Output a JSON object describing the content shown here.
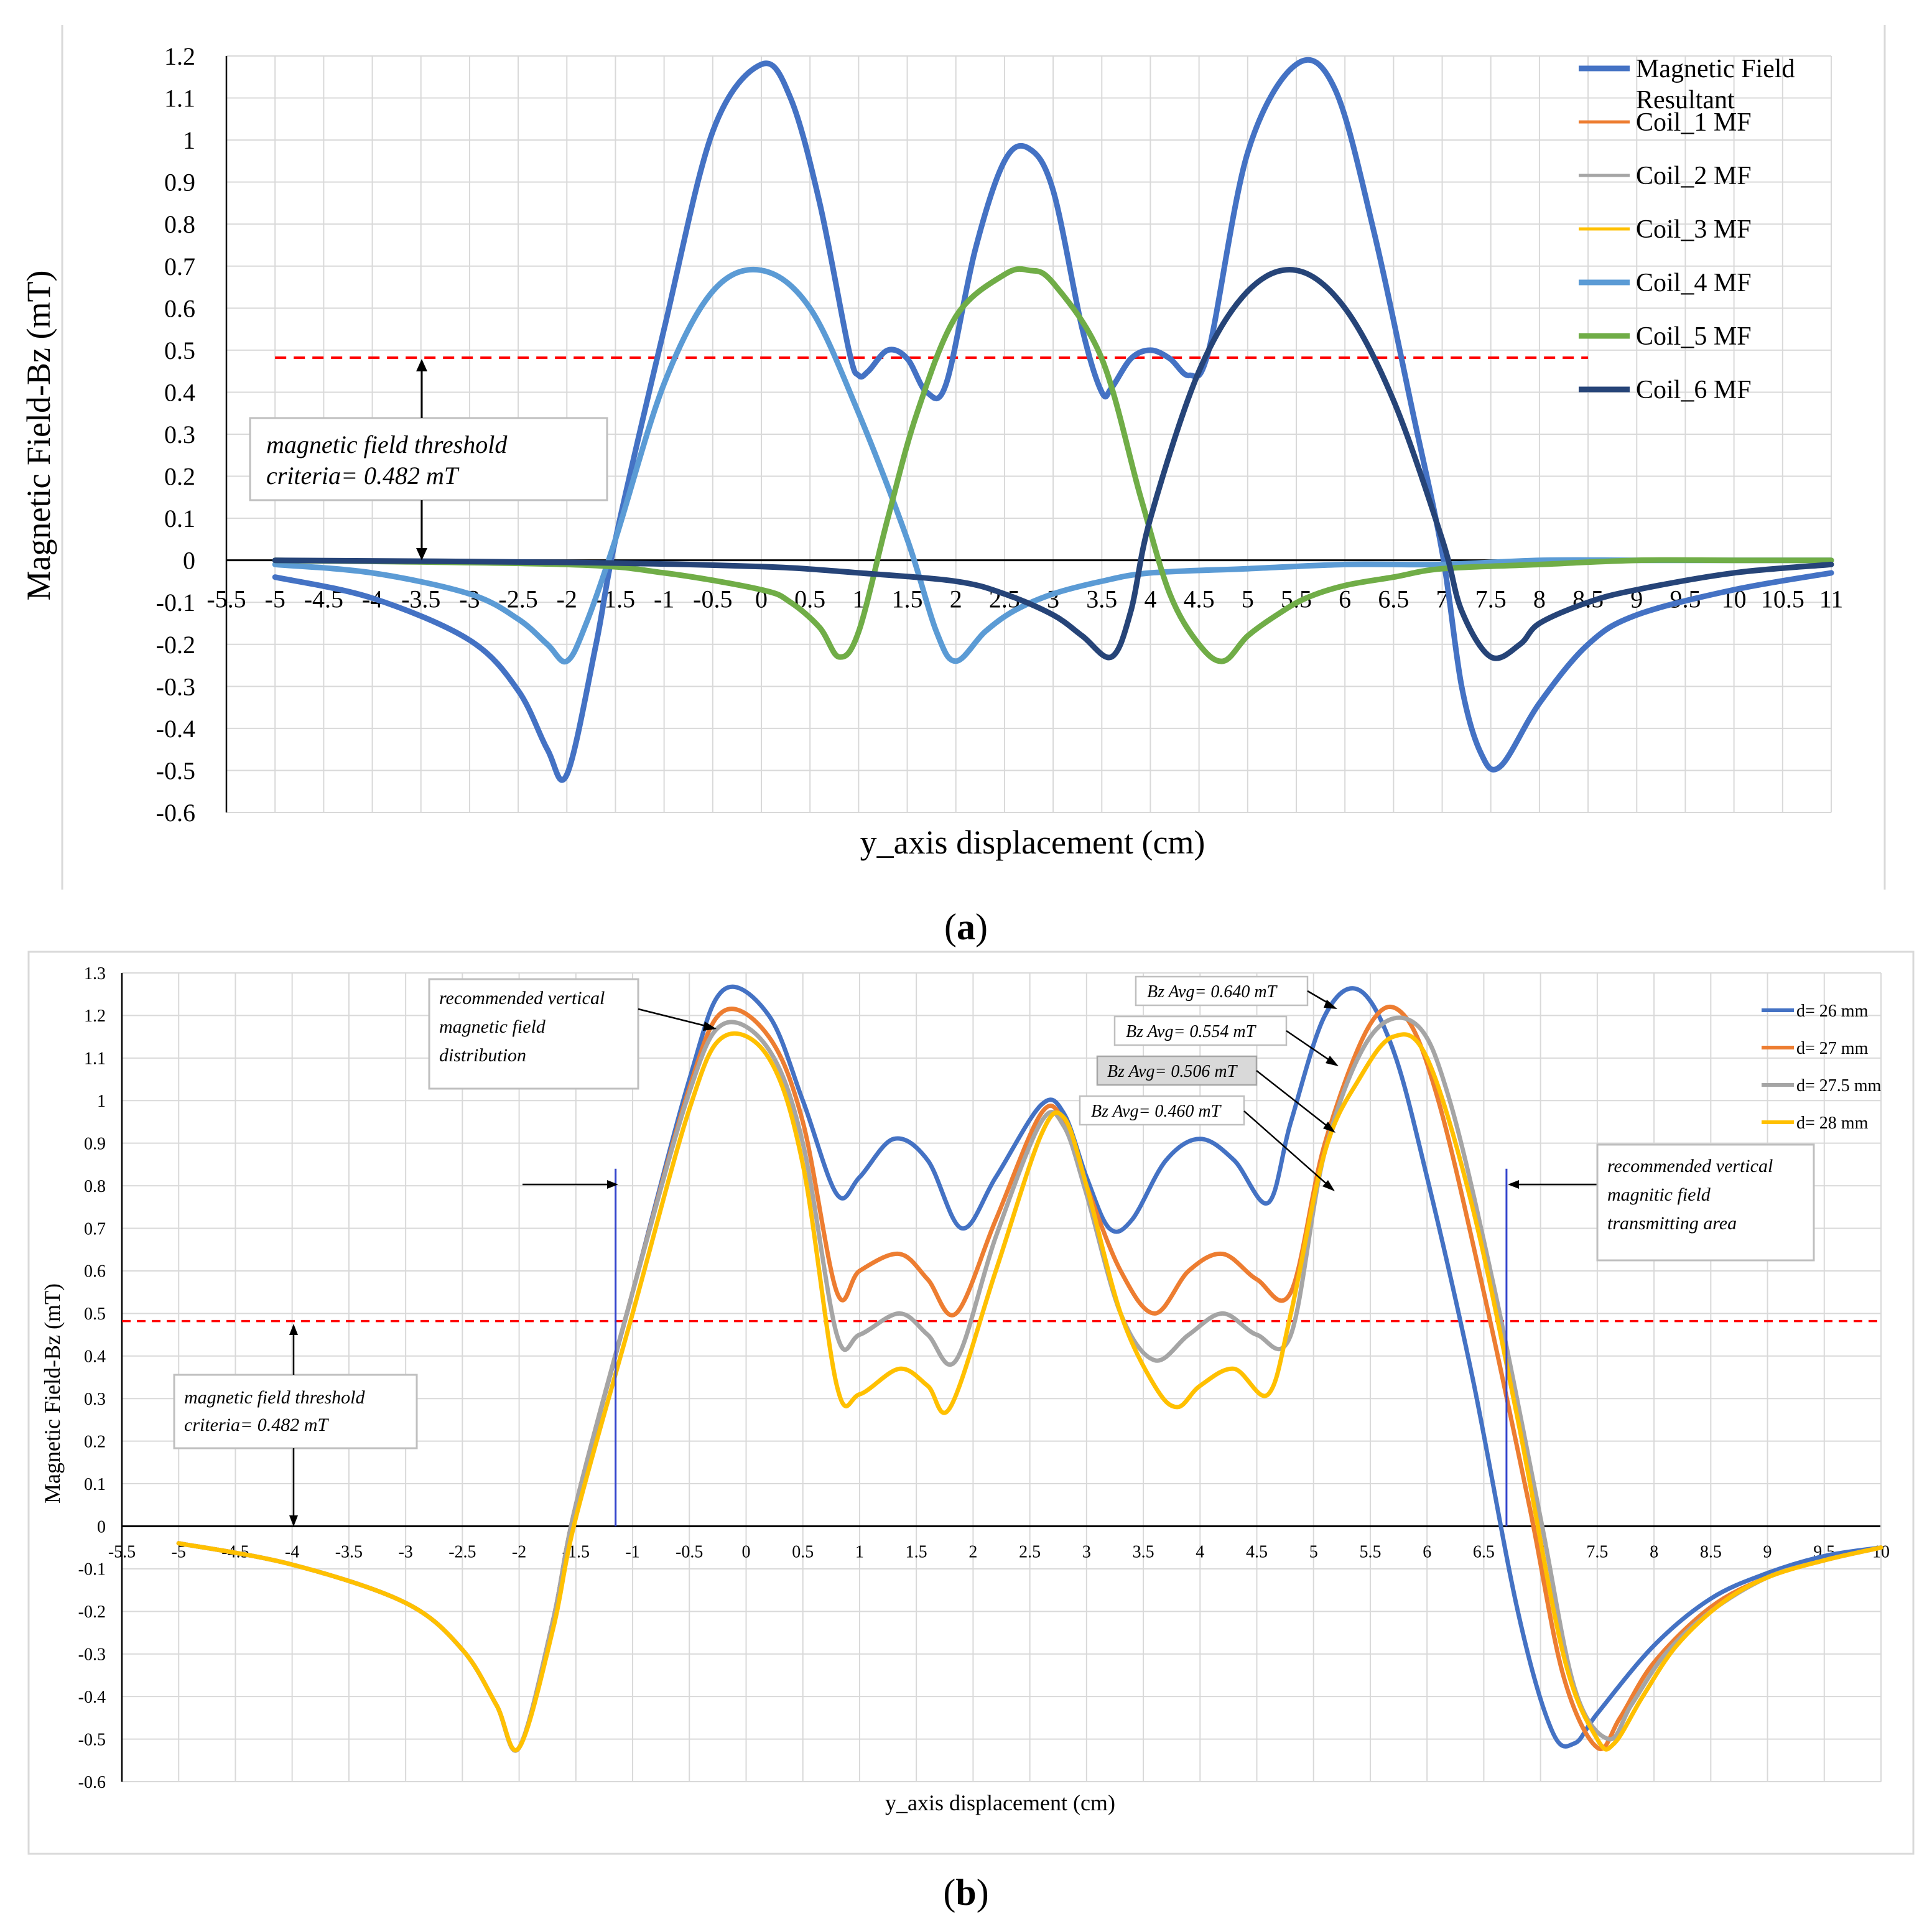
{
  "chart_data": [
    {
      "type": "line",
      "panel_label": "(a)",
      "xlabel": "y_axis displacement (cm)",
      "ylabel": "Magnetic Field-Bz (mT)",
      "xlim": [
        -5.5,
        11
      ],
      "ylim": [
        -0.6,
        1.2
      ],
      "x_ticks": [
        "-5.5",
        "-5",
        "-4.5",
        "-4",
        "-3.5",
        "-3",
        "-2.5",
        "-2",
        "-1.5",
        "-1",
        "-0.5",
        "0",
        "0.5",
        "1",
        "1.5",
        "2",
        "2.5",
        "3",
        "3.5",
        "4",
        "4.5",
        "5",
        "5.5",
        "6",
        "6.5",
        "7",
        "7.5",
        "8",
        "8.5",
        "9",
        "9.5",
        "10",
        "10.5",
        "11"
      ],
      "y_ticks": [
        "1.2",
        "1.1",
        "1",
        "0.9",
        "0.8",
        "0.7",
        "0.6",
        "0.5",
        "0.4",
        "0.3",
        "0.2",
        "0.1",
        "0",
        "-0.1",
        "-0.2",
        "-0.3",
        "-0.4",
        "-0.5",
        "-0.6"
      ],
      "grid": true,
      "legend": [
        "Magnetic Field Resultant",
        "Coil_1 MF",
        "Coil_2 MF",
        "Coil_3 MF",
        "Coil_4 MF",
        "Coil_5 MF",
        "Coil_6 MF"
      ],
      "threshold": 0.482,
      "threshold_xrange": [
        -5,
        8.5
      ],
      "annotation": [
        "magnetic field threshold",
        "criteria=  0.482 mT"
      ],
      "series": [
        {
          "name": "Magnetic Field Resultant",
          "color": "#4472C4",
          "x": [
            -5,
            -4,
            -3,
            -2.5,
            -2.2,
            -2,
            -1.7,
            -1.5,
            -1,
            -0.5,
            0,
            0.3,
            0.6,
            0.9,
            1.0,
            1.1,
            1.3,
            1.5,
            1.7,
            1.9,
            2.2,
            2.5,
            2.75,
            3,
            3.3,
            3.5,
            3.6,
            3.8,
            4.0,
            4.2,
            4.4,
            4.6,
            5,
            5.5,
            5.9,
            6.3,
            6.7,
            7,
            7.2,
            7.4,
            7.6,
            8,
            8.5,
            9,
            10,
            11
          ],
          "values": [
            -0.04,
            -0.09,
            -0.19,
            -0.31,
            -0.45,
            -0.51,
            -0.2,
            0.05,
            0.55,
            1.02,
            1.18,
            1.1,
            0.85,
            0.5,
            0.44,
            0.45,
            0.5,
            0.48,
            0.4,
            0.42,
            0.74,
            0.95,
            0.98,
            0.88,
            0.55,
            0.4,
            0.41,
            0.48,
            0.5,
            0.48,
            0.44,
            0.5,
            0.97,
            1.18,
            1.12,
            0.78,
            0.35,
            0.02,
            -0.3,
            -0.46,
            -0.49,
            -0.34,
            -0.2,
            -0.13,
            -0.07,
            -0.03
          ]
        },
        {
          "name": "Coil_4 MF",
          "color": "#5B9BD5",
          "x": [
            -5,
            -4,
            -3,
            -2.5,
            -2.2,
            -2,
            -1.8,
            -1.5,
            -1,
            -0.5,
            0,
            0.5,
            1,
            1.5,
            1.8,
            2,
            2.3,
            2.6,
            3,
            3.5,
            4,
            5,
            6,
            7,
            8,
            9,
            10,
            11
          ],
          "values": [
            -0.01,
            -0.03,
            -0.08,
            -0.14,
            -0.2,
            -0.24,
            -0.15,
            0.05,
            0.42,
            0.64,
            0.69,
            0.6,
            0.35,
            0.05,
            -0.17,
            -0.24,
            -0.17,
            -0.12,
            -0.08,
            -0.05,
            -0.03,
            -0.02,
            -0.01,
            -0.01,
            0,
            0,
            0,
            0
          ]
        },
        {
          "name": "Coil_5 MF",
          "color": "#70AD47",
          "x": [
            -5,
            -2,
            -1,
            0,
            0.3,
            0.6,
            0.8,
            1,
            1.3,
            1.6,
            2,
            2.5,
            2.75,
            3,
            3.5,
            3.9,
            4.2,
            4.5,
            4.75,
            5,
            5.3,
            5.6,
            6,
            6.5,
            7,
            8,
            9,
            10,
            11
          ],
          "values": [
            0,
            -0.01,
            -0.03,
            -0.07,
            -0.1,
            -0.16,
            -0.23,
            -0.17,
            0.1,
            0.35,
            0.58,
            0.68,
            0.69,
            0.66,
            0.48,
            0.15,
            -0.08,
            -0.2,
            -0.24,
            -0.18,
            -0.13,
            -0.09,
            -0.06,
            -0.04,
            -0.02,
            -0.01,
            0,
            0,
            0
          ]
        },
        {
          "name": "Coil_6 MF",
          "color": "#264478",
          "x": [
            -5,
            -2,
            0,
            1,
            2,
            2.5,
            3,
            3.3,
            3.6,
            3.8,
            4,
            4.5,
            5,
            5.5,
            6,
            6.5,
            7,
            7.2,
            7.5,
            7.8,
            8,
            8.5,
            9,
            10,
            11
          ],
          "values": [
            0,
            -0.005,
            -0.015,
            -0.03,
            -0.05,
            -0.08,
            -0.13,
            -0.18,
            -0.23,
            -0.12,
            0.1,
            0.45,
            0.64,
            0.69,
            0.6,
            0.38,
            0.05,
            -0.12,
            -0.23,
            -0.2,
            -0.15,
            -0.1,
            -0.07,
            -0.03,
            -0.01
          ]
        }
      ]
    },
    {
      "type": "line",
      "panel_label": "(b)",
      "xlabel": "y_axis displacement (cm)",
      "ylabel": "Magnetic Field-Bz (mT)",
      "xlim": [
        -5.5,
        10
      ],
      "ylim": [
        -0.6,
        1.3
      ],
      "x_ticks": [
        "-5.5",
        "-5",
        "-4.5",
        "-4",
        "-3.5",
        "-3",
        "-2.5",
        "-2",
        "-1.5",
        "-1",
        "-0.5",
        "0",
        "0.5",
        "1",
        "1.5",
        "2",
        "2.5",
        "3",
        "3.5",
        "4",
        "4.5",
        "5",
        "5.5",
        "6",
        "6.5",
        "7",
        "7.5",
        "8",
        "8.5",
        "9",
        "9.5",
        "10"
      ],
      "y_ticks": [
        "1.3",
        "1.2",
        "1.1",
        "1",
        "0.9",
        "0.8",
        "0.7",
        "0.6",
        "0.5",
        "0.4",
        "0.3",
        "0.2",
        "0.1",
        "0",
        "-0.1",
        "-0.2",
        "-0.3",
        "-0.4",
        "-0.5",
        "-0.6"
      ],
      "grid": true,
      "legend": [
        "d= 26 mm",
        "d= 27 mm",
        "d= 27.5 mm",
        "d= 28 mm"
      ],
      "threshold": 0.482,
      "threshold_xrange": [
        -5.5,
        10
      ],
      "vertical_lines_x": [
        -1.15,
        6.7
      ],
      "annotations": {
        "threshold": [
          "magnetic field threshold",
          "criteria=  0.482 mT"
        ],
        "distribution": [
          "recommended vertical",
          "magnetic field",
          "distribution"
        ],
        "area": [
          "recommended vertical",
          "magnitic field",
          "transmitting area"
        ],
        "bz_avg": [
          "Bz Avg= 0.640 mT",
          "Bz Avg= 0.554 mT",
          "Bz Avg= 0.506 mT",
          "Bz Avg= 0.460 mT"
        ]
      },
      "series": [
        {
          "name": "d= 26 mm",
          "color": "#4472C4",
          "x": [
            -5,
            -4,
            -3,
            -2.5,
            -2.2,
            -2,
            -1.7,
            -1.5,
            -1,
            -0.5,
            -0.2,
            0.2,
            0.5,
            0.8,
            1.0,
            1.3,
            1.6,
            1.9,
            2.2,
            2.6,
            2.8,
            3.0,
            3.2,
            3.4,
            3.7,
            4.0,
            4.3,
            4.6,
            4.8,
            5.1,
            5.4,
            5.7,
            6.0,
            6.4,
            6.8,
            7.1,
            7.3,
            7.5,
            8,
            8.5,
            9,
            9.5,
            10
          ],
          "values": [
            -0.04,
            -0.09,
            -0.18,
            -0.29,
            -0.42,
            -0.52,
            -0.22,
            0.05,
            0.55,
            1.05,
            1.26,
            1.2,
            1.0,
            0.78,
            0.82,
            0.91,
            0.86,
            0.7,
            0.82,
            0.99,
            0.97,
            0.82,
            0.7,
            0.72,
            0.86,
            0.91,
            0.86,
            0.76,
            0.95,
            1.2,
            1.26,
            1.12,
            0.82,
            0.35,
            -0.2,
            -0.48,
            -0.51,
            -0.44,
            -0.28,
            -0.17,
            -0.11,
            -0.07,
            -0.05
          ]
        },
        {
          "name": "d= 27 mm",
          "color": "#ED7D31",
          "x": [
            -5,
            -4,
            -3,
            -2.5,
            -2.2,
            -2,
            -1.7,
            -1.5,
            -1,
            -0.5,
            -0.2,
            0.2,
            0.5,
            0.8,
            1.0,
            1.35,
            1.6,
            1.85,
            2.2,
            2.6,
            2.8,
            3.0,
            3.3,
            3.6,
            3.9,
            4.2,
            4.5,
            4.8,
            5.1,
            5.5,
            5.8,
            6.1,
            6.5,
            6.9,
            7.2,
            7.5,
            7.7,
            8,
            8.5,
            9,
            9.5,
            10
          ],
          "values": [
            -0.04,
            -0.09,
            -0.18,
            -0.29,
            -0.42,
            -0.52,
            -0.22,
            0.05,
            0.55,
            1.03,
            1.21,
            1.15,
            0.95,
            0.55,
            0.6,
            0.64,
            0.58,
            0.5,
            0.72,
            0.97,
            0.95,
            0.8,
            0.6,
            0.5,
            0.6,
            0.64,
            0.58,
            0.55,
            0.9,
            1.18,
            1.2,
            1.0,
            0.55,
            0.05,
            -0.35,
            -0.52,
            -0.45,
            -0.32,
            -0.19,
            -0.12,
            -0.08,
            -0.05
          ]
        },
        {
          "name": "d= 27.5 mm",
          "color": "#A5A5A5",
          "x": [
            -5,
            -4,
            -3,
            -2.5,
            -2.2,
            -2,
            -1.7,
            -1.5,
            -1,
            -0.5,
            -0.2,
            0.2,
            0.5,
            0.8,
            1.0,
            1.35,
            1.6,
            1.85,
            2.2,
            2.6,
            2.8,
            3.0,
            3.3,
            3.6,
            3.9,
            4.2,
            4.5,
            4.8,
            5.1,
            5.5,
            5.9,
            6.2,
            6.6,
            7.0,
            7.3,
            7.6,
            7.8,
            8.1,
            8.5,
            9,
            9.5,
            10
          ],
          "values": [
            -0.04,
            -0.09,
            -0.18,
            -0.29,
            -0.42,
            -0.52,
            -0.22,
            0.05,
            0.55,
            1.02,
            1.18,
            1.12,
            0.9,
            0.45,
            0.45,
            0.5,
            0.45,
            0.39,
            0.68,
            0.95,
            0.94,
            0.78,
            0.5,
            0.39,
            0.45,
            0.5,
            0.45,
            0.45,
            0.88,
            1.15,
            1.18,
            1.0,
            0.55,
            0.02,
            -0.38,
            -0.5,
            -0.42,
            -0.3,
            -0.2,
            -0.12,
            -0.08,
            -0.05
          ]
        },
        {
          "name": "d= 28 mm",
          "color": "#FFC000",
          "x": [
            -5,
            -4,
            -3,
            -2.5,
            -2.2,
            -2,
            -1.7,
            -1.5,
            -1,
            -0.5,
            -0.2,
            0.2,
            0.5,
            0.8,
            1.0,
            1.35,
            1.6,
            1.8,
            2.2,
            2.6,
            2.8,
            3.0,
            3.3,
            3.6,
            3.8,
            4.0,
            4.3,
            4.6,
            4.8,
            5.1,
            5.4,
            5.7,
            6.0,
            6.4,
            6.8,
            7.2,
            7.5,
            7.65,
            7.9,
            8.2,
            8.6,
            9,
            9.5,
            10
          ],
          "values": [
            -0.04,
            -0.09,
            -0.18,
            -0.29,
            -0.42,
            -0.52,
            -0.24,
            0.02,
            0.5,
            0.98,
            1.15,
            1.1,
            0.85,
            0.33,
            0.31,
            0.37,
            0.33,
            0.28,
            0.6,
            0.92,
            0.96,
            0.8,
            0.5,
            0.33,
            0.28,
            0.33,
            0.37,
            0.31,
            0.5,
            0.88,
            1.05,
            1.15,
            1.1,
            0.75,
            0.25,
            -0.3,
            -0.5,
            -0.51,
            -0.4,
            -0.28,
            -0.18,
            -0.12,
            -0.08,
            -0.05
          ]
        }
      ]
    }
  ]
}
